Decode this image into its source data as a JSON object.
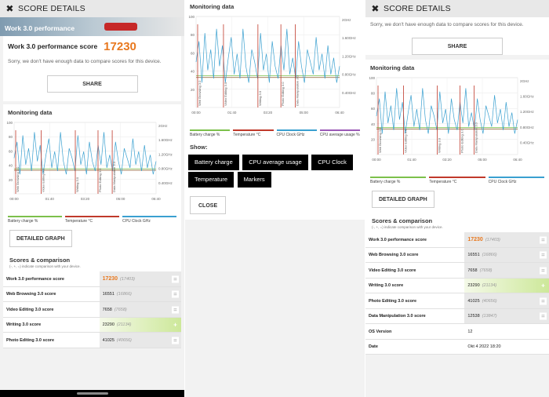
{
  "score_details_title": "SCORE DETAILS",
  "banner_title": "Work 3.0 performance",
  "main_score": {
    "label": "Work 3.0 performance score",
    "value": "17230"
  },
  "sorry_text": "Sorry, we don't have enough data to compare scores for this device.",
  "share_label": "SHARE",
  "monitoring_title": "Monitoring data",
  "legend": [
    {
      "label": "Battery charge %",
      "color": "#7cc04b"
    },
    {
      "label": "Temperature °C",
      "color": "#c0392b"
    },
    {
      "label": "CPU Clock GHz",
      "color": "#3aa0d0"
    }
  ],
  "legend_p2": [
    {
      "label": "Battery charge %",
      "color": "#7cc04b"
    },
    {
      "label": "Temperature °C",
      "color": "#c0392b"
    },
    {
      "label": "CPU Clock GHz",
      "color": "#3aa0d0"
    },
    {
      "label": "CPU average usage %",
      "color": "#9b59b6"
    }
  ],
  "detailed_graph_label": "DETAILED GRAPH",
  "scores_title": "Scores & comparison",
  "scores_subtitle": "(-, +, =) indicate comparison with your device.",
  "scores": [
    {
      "label": "Work 3.0 performance score",
      "value": "17230",
      "compare": "(17403)",
      "control": "=",
      "highlight": false,
      "big": true
    },
    {
      "label": "Web Browsing 3.0 score",
      "value": "16551",
      "compare": "(16866)",
      "control": "=",
      "highlight": false,
      "big": false
    },
    {
      "label": "Video Editing 3.0 score",
      "value": "7658",
      "compare": "(7658)",
      "control": "=",
      "highlight": false,
      "big": false
    },
    {
      "label": "Writing 3.0 score",
      "value": "23290",
      "compare": "(21134)",
      "control": "+",
      "highlight": true,
      "big": false
    },
    {
      "label": "Photo Editing 3.0 score",
      "value": "41025",
      "compare": "(40656)",
      "control": "=",
      "highlight": false,
      "big": false
    },
    {
      "label": "Data Manipulation 3.0 score",
      "value": "12538",
      "compare": "(13847)",
      "control": "=",
      "highlight": false,
      "big": false
    }
  ],
  "info_rows": [
    {
      "label": "OS Version",
      "value": "12"
    },
    {
      "label": "Date",
      "value": "Okt 4 2022 18:20"
    }
  ],
  "show_label": "Show:",
  "show_buttons": [
    "Battery charge",
    "CPU average usage",
    "CPU Clock",
    "Temperature",
    "Markers"
  ],
  "close_label": "CLOSE",
  "chart_data": {
    "type": "line",
    "title": "Monitoring data",
    "x_ticks": [
      "00:00",
      "01:40",
      "03:20",
      "05:00",
      "06:40"
    ],
    "y_left_ticks": [
      "100",
      "80",
      "60",
      "40",
      "20"
    ],
    "y_right_ticks": [
      "2GHz",
      "1.60GHz",
      "1.20GHz",
      "0.80GHz",
      "0.40GHz"
    ],
    "markers": [
      "Web Browsing 3.0",
      "Video Editing 3.0",
      "Writing 3.0",
      "Photo Editing 3.0",
      "Data Manipulation 3.0"
    ],
    "series": [
      {
        "name": "Battery charge %",
        "values": [
          35,
          35,
          35,
          35,
          35
        ]
      },
      {
        "name": "Temperature °C",
        "values": [
          33,
          33,
          33,
          33,
          33
        ]
      },
      {
        "name": "CPU Clock GHz",
        "values": [
          1.1,
          1.6,
          0.6,
          1.8,
          0.9,
          1.4,
          0.7,
          1.9,
          1.0,
          1.5,
          0.6,
          1.2,
          1.7,
          0.8,
          1.3,
          0.7,
          1.9,
          1.0,
          0.6,
          1.4,
          1.1,
          0.7,
          1.8,
          0.9,
          1.3,
          0.6,
          1.6,
          1.0,
          0.7,
          1.5,
          0.9,
          1.9,
          0.8,
          1.2,
          0.7,
          1.6,
          1.0,
          0.6,
          1.4,
          1.1,
          0.8,
          1.7,
          0.9,
          1.3,
          0.7,
          1.5,
          0.8,
          1.2,
          0.6,
          1.0
        ]
      }
    ]
  }
}
